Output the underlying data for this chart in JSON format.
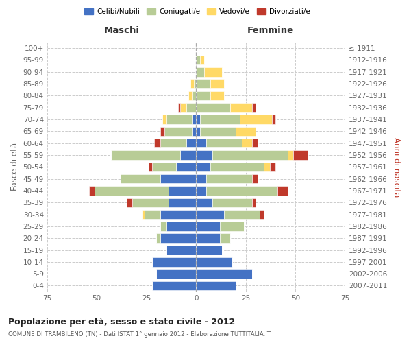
{
  "age_groups": [
    "0-4",
    "5-9",
    "10-14",
    "15-19",
    "20-24",
    "25-29",
    "30-34",
    "35-39",
    "40-44",
    "45-49",
    "50-54",
    "55-59",
    "60-64",
    "65-69",
    "70-74",
    "75-79",
    "80-84",
    "85-89",
    "90-94",
    "95-99",
    "100+"
  ],
  "birth_years": [
    "2007-2011",
    "2002-2006",
    "1997-2001",
    "1992-1996",
    "1987-1991",
    "1982-1986",
    "1977-1981",
    "1972-1976",
    "1967-1971",
    "1962-1966",
    "1957-1961",
    "1952-1956",
    "1947-1951",
    "1942-1946",
    "1937-1941",
    "1932-1936",
    "1927-1931",
    "1922-1926",
    "1917-1921",
    "1912-1916",
    "≤ 1911"
  ],
  "male_celibe": [
    22,
    20,
    22,
    15,
    18,
    15,
    18,
    14,
    14,
    18,
    10,
    8,
    5,
    2,
    2,
    0,
    0,
    0,
    0,
    0,
    0
  ],
  "male_coniugato": [
    0,
    0,
    0,
    0,
    2,
    3,
    8,
    18,
    37,
    20,
    12,
    35,
    13,
    14,
    13,
    5,
    2,
    1,
    0,
    0,
    0
  ],
  "male_vedovo": [
    0,
    0,
    0,
    0,
    0,
    0,
    1,
    0,
    0,
    0,
    0,
    0,
    0,
    0,
    2,
    3,
    2,
    2,
    0,
    0,
    0
  ],
  "male_divorziato": [
    0,
    0,
    0,
    0,
    0,
    0,
    0,
    3,
    3,
    0,
    2,
    0,
    3,
    2,
    0,
    1,
    0,
    0,
    0,
    0,
    0
  ],
  "female_nubile": [
    20,
    28,
    18,
    13,
    12,
    12,
    14,
    8,
    5,
    5,
    7,
    8,
    5,
    2,
    2,
    0,
    0,
    0,
    0,
    0,
    0
  ],
  "female_coniugata": [
    0,
    0,
    0,
    0,
    5,
    12,
    18,
    20,
    36,
    23,
    27,
    38,
    18,
    18,
    20,
    17,
    7,
    7,
    4,
    2,
    0
  ],
  "female_vedova": [
    0,
    0,
    0,
    0,
    0,
    0,
    0,
    0,
    0,
    0,
    3,
    3,
    5,
    10,
    16,
    11,
    7,
    7,
    9,
    2,
    0
  ],
  "female_divorziata": [
    0,
    0,
    0,
    0,
    0,
    0,
    2,
    2,
    5,
    3,
    3,
    7,
    3,
    0,
    2,
    2,
    0,
    0,
    0,
    0,
    0
  ],
  "colors": {
    "celibe": "#4472c4",
    "coniugato": "#b8cc96",
    "vedovo": "#ffd966",
    "divorziato": "#c0392b"
  },
  "title": "Popolazione per età, sesso e stato civile - 2012",
  "subtitle": "COMUNE DI TRAMBILENO (TN) - Dati ISTAT 1° gennaio 2012 - Elaborazione TUTTITALIA.IT",
  "label_maschi": "Maschi",
  "label_femmine": "Femmine",
  "label_fasce": "Fasce di età",
  "label_anni": "Anni di nascita",
  "legend_labels": [
    "Celibi/Nubili",
    "Coniugati/e",
    "Vedovi/e",
    "Divorziati/e"
  ],
  "xlim": 75
}
